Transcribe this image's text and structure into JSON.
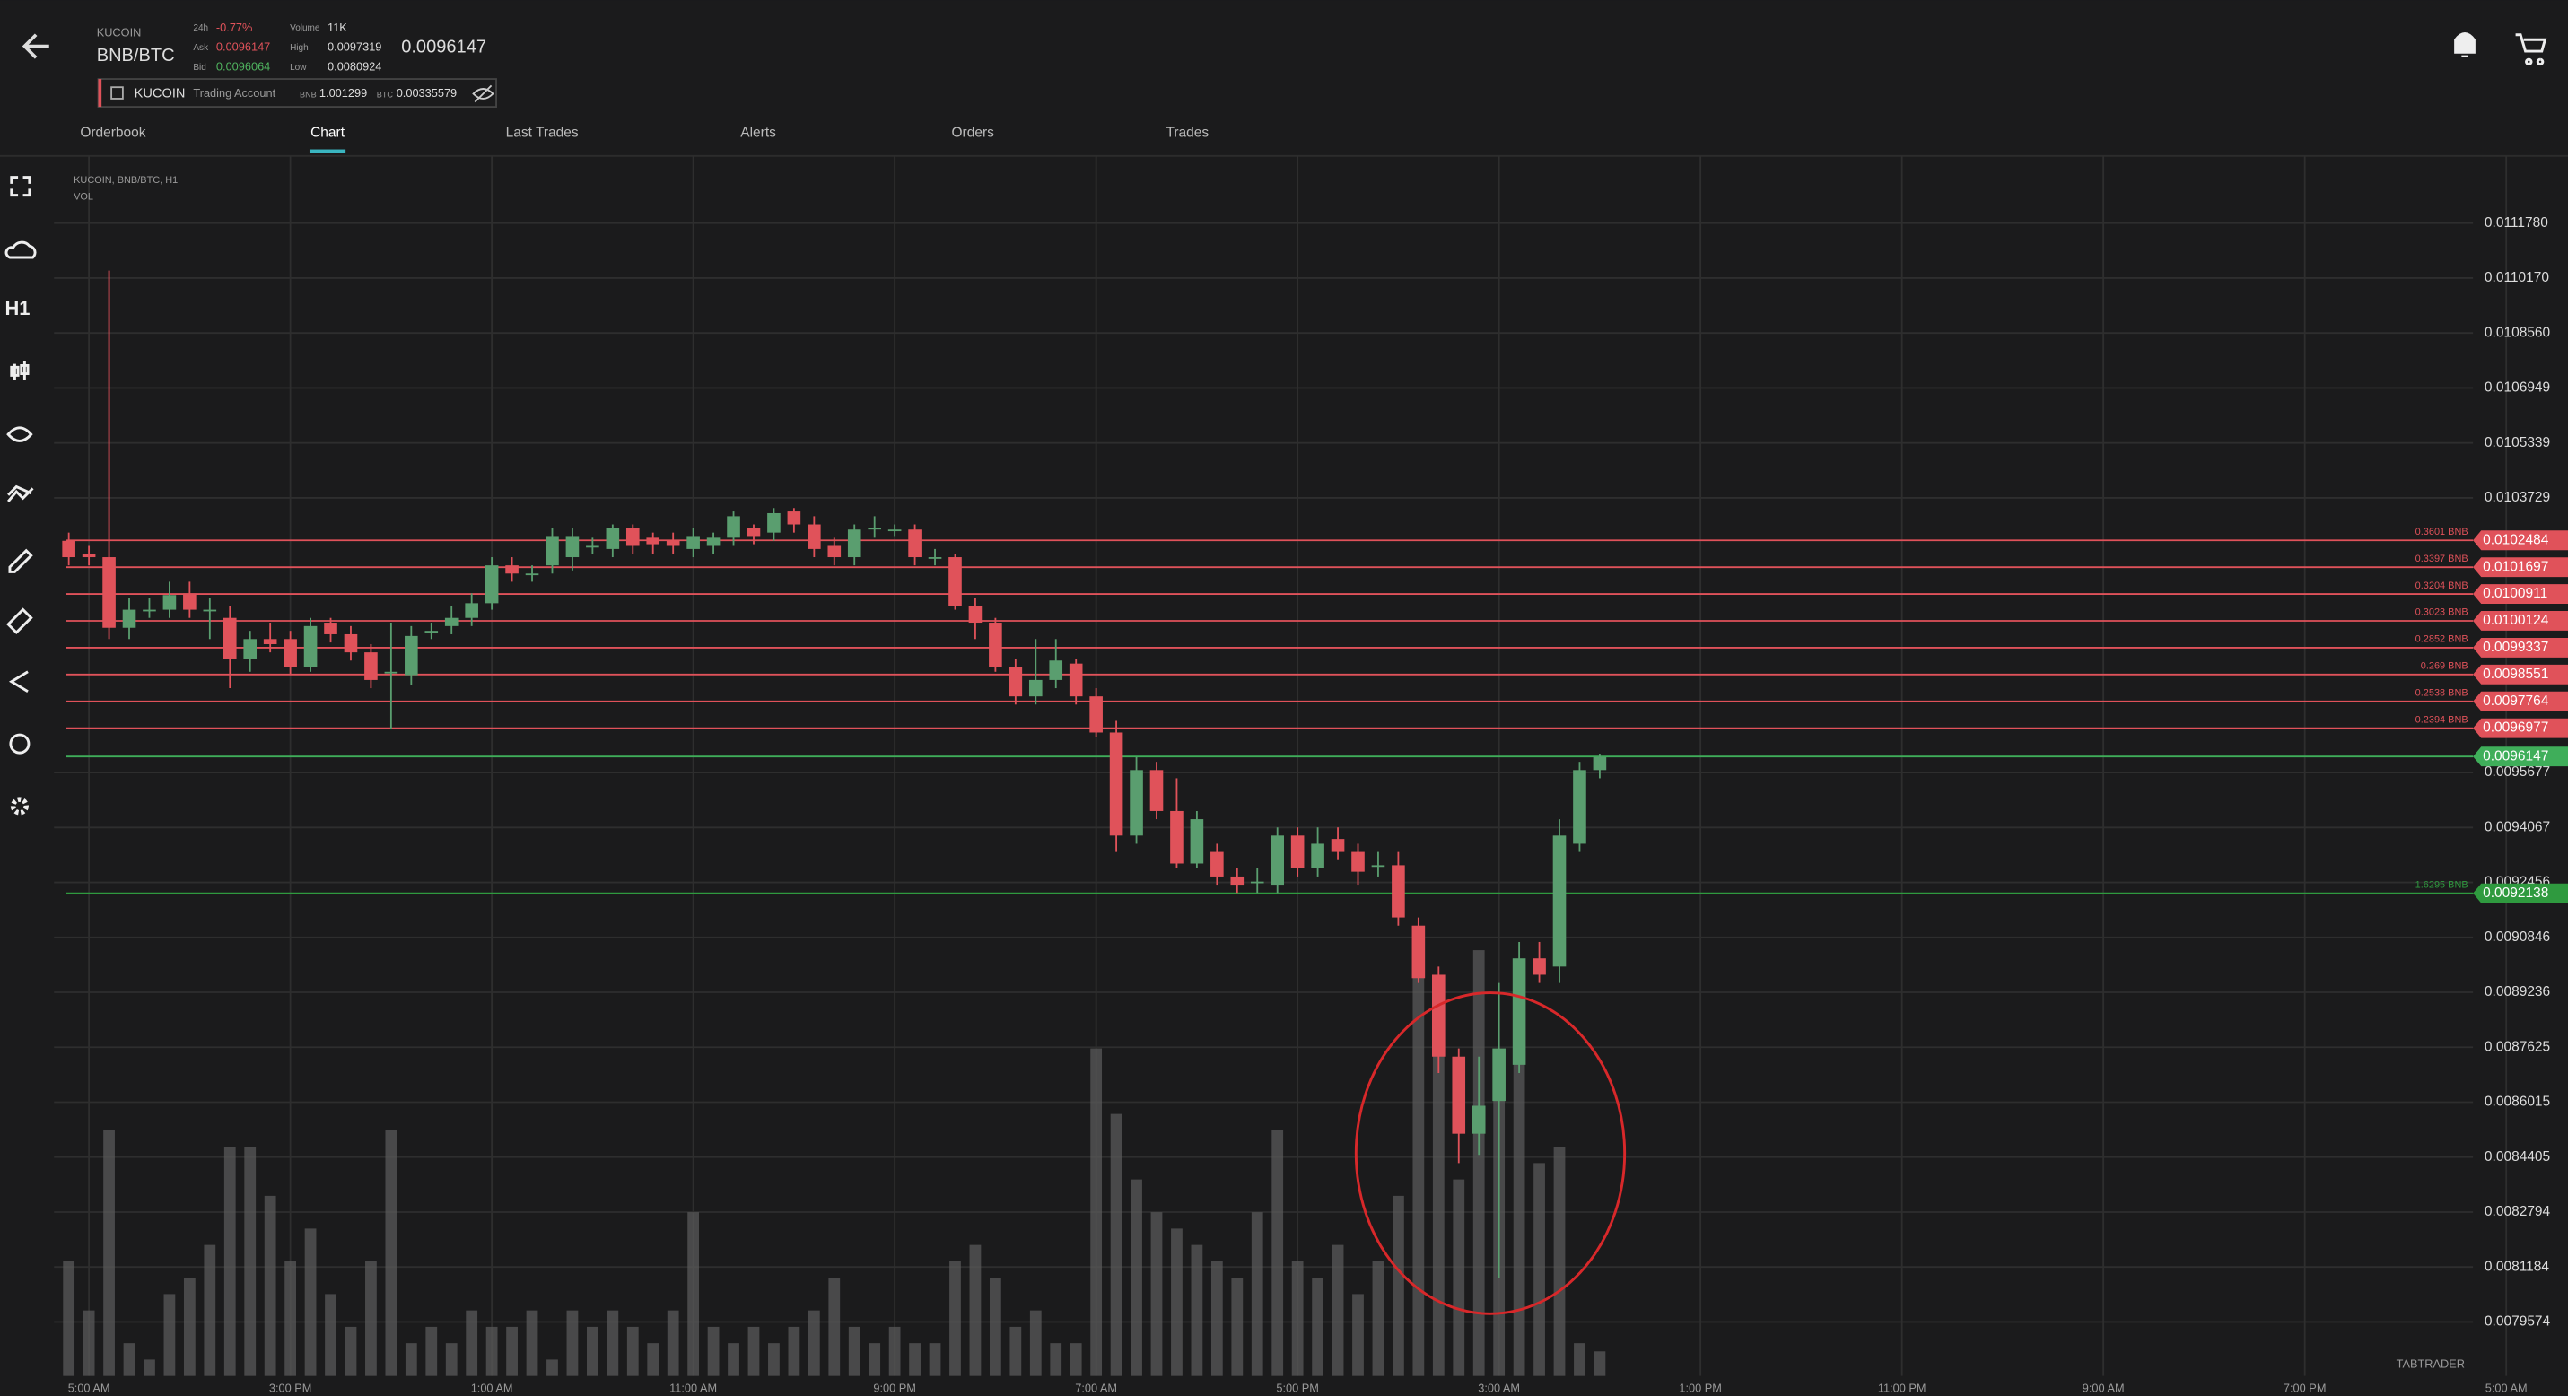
{
  "header": {
    "exchange": "KUCOIN",
    "pair": "BNB/BTC",
    "change_label": "24h",
    "change": "-0.77%",
    "ask_label": "Ask",
    "ask": "0.0096147",
    "bid_label": "Bid",
    "bid": "0.0096064",
    "volume_label": "Volume",
    "volume": "11K",
    "high_label": "High",
    "high": "0.0097319",
    "low_label": "Low",
    "low": "0.0080924",
    "last": "0.0096147"
  },
  "account": {
    "exchange": "KUCOIN",
    "name": "Trading Account",
    "bnb_label": "BNB",
    "bnb": "1.001299",
    "btc_label": "BTC",
    "btc": "0.00335579"
  },
  "tabs": [
    "Orderbook",
    "Chart",
    "Last Trades",
    "Alerts",
    "Orders",
    "Trades"
  ],
  "active_tab": "Chart",
  "sidebar": {
    "timeframe": "H1"
  },
  "watermark": "TABTRADER",
  "chart_data": {
    "type": "candlestick",
    "title": "KUCOIN, BNB/BTC, H1",
    "volume_label": "VOL",
    "up_color": "#5a9e6f",
    "down_color": "#e0525a",
    "volume_color": "#5a5a5a",
    "grid": true,
    "ylim": [
      0.007799,
      0.011375
    ],
    "yticks": [
      {
        "value": 0.011178,
        "label": "0.0111780"
      },
      {
        "value": 0.011017,
        "label": "0.0110170"
      },
      {
        "value": 0.010856,
        "label": "0.0108560"
      },
      0.0106949,
      0.0105339,
      0.0103729,
      0.0095677,
      0.0094067,
      0.0092456,
      0.0090846,
      0.0089236,
      0.0087625,
      0.0086015,
      0.0084405,
      0.0082794,
      0.0081184,
      0.0079574
    ],
    "x_labels": [
      "5:00 AM",
      "3:00 PM",
      "1:00 AM",
      "11:00 AM",
      "9:00 PM",
      "7:00 AM",
      "5:00 PM",
      "3:00 AM",
      "1:00 PM",
      "11:00 PM",
      "9:00 AM",
      "7:00 PM",
      "5:00 AM"
    ],
    "open": [
      0.010247,
      0.010208,
      0.010199,
      0.009992,
      0.010045,
      0.010045,
      0.010093,
      0.010045,
      0.010021,
      0.009901,
      0.009959,
      0.009959,
      0.009877,
      0.010007,
      0.009973,
      0.00992,
      0.009863,
      0.009853,
      0.009983,
      0.009997,
      0.010021,
      0.010064,
      0.010175,
      0.010151,
      0.010175,
      0.010199,
      0.010232,
      0.010223,
      0.010285,
      0.010256,
      0.010247,
      0.010223,
      0.010232,
      0.010256,
      0.010285,
      0.010271,
      0.010333,
      0.010295,
      0.010232,
      0.010199,
      0.010285,
      0.01028,
      0.01028,
      0.010199,
      0.010199,
      0.010055,
      0.010007,
      0.009877,
      0.009791,
      0.009839,
      0.009887,
      0.009791,
      0.009685,
      0.009383,
      0.009575,
      0.009455,
      0.009301,
      0.009335,
      0.009263,
      0.009248,
      0.009239,
      0.009383,
      0.009287,
      0.009373,
      0.009335,
      0.009296,
      0.009296,
      0.009119,
      0.008975,
      0.008735,
      0.008509,
      0.008605,
      0.008711,
      0.009023,
      0.008999,
      0.009359,
      0.009575
    ],
    "close": [
      0.010199,
      0.010199,
      0.009992,
      0.010045,
      0.010045,
      0.010088,
      0.010045,
      0.010045,
      0.009901,
      0.009959,
      0.009944,
      0.009877,
      0.009997,
      0.009973,
      0.00992,
      0.009839,
      0.009863,
      0.009968,
      0.009983,
      0.010021,
      0.010064,
      0.010175,
      0.010151,
      0.010151,
      0.010261,
      0.010261,
      0.010232,
      0.010285,
      0.010232,
      0.010237,
      0.010232,
      0.010261,
      0.010256,
      0.010319,
      0.010261,
      0.010328,
      0.010295,
      0.010223,
      0.010199,
      0.01028,
      0.010285,
      0.01028,
      0.010199,
      0.010199,
      0.010055,
      0.010007,
      0.009877,
      0.009791,
      0.009839,
      0.009896,
      0.009791,
      0.009685,
      0.009383,
      0.009575,
      0.009455,
      0.009301,
      0.009431,
      0.009263,
      0.009239,
      0.009248,
      0.009383,
      0.009287,
      0.009359,
      0.009335,
      0.009277,
      0.009296,
      0.009143,
      0.008965,
      0.008735,
      0.008509,
      0.008591,
      0.008759,
      0.009023,
      0.008975,
      0.009383,
      0.009575,
      0.009613
    ],
    "high": [
      0.010271,
      0.010232,
      0.011039,
      0.010079,
      0.010079,
      0.010127,
      0.010127,
      0.010079,
      0.010055,
      0.009983,
      0.010007,
      0.009983,
      0.010021,
      0.010021,
      0.009997,
      0.009944,
      0.010007,
      0.009997,
      0.010007,
      0.010055,
      0.010093,
      0.010199,
      0.010199,
      0.010175,
      0.010285,
      0.010285,
      0.010256,
      0.010295,
      0.010295,
      0.010271,
      0.010271,
      0.010285,
      0.010271,
      0.010333,
      0.010295,
      0.010343,
      0.010343,
      0.010319,
      0.010256,
      0.010295,
      0.010319,
      0.010295,
      0.010295,
      0.010223,
      0.010208,
      0.010079,
      0.010021,
      0.009901,
      0.009959,
      0.009959,
      0.009901,
      0.009815,
      0.009719,
      0.009613,
      0.009599,
      0.009551,
      0.009455,
      0.009359,
      0.009287,
      0.009287,
      0.009407,
      0.009407,
      0.009407,
      0.009407,
      0.009359,
      0.009335,
      0.009335,
      0.009143,
      0.008999,
      0.008759,
      0.008735,
      0.008951,
      0.009071,
      0.009071,
      0.009431,
      0.009599,
      0.009623
    ],
    "low": [
      0.010175,
      0.010175,
      0.009959,
      0.009959,
      0.010021,
      0.010021,
      0.010021,
      0.009959,
      0.009815,
      0.009863,
      0.00992,
      0.009853,
      0.009863,
      0.009949,
      0.009896,
      0.009815,
      0.009695,
      0.009824,
      0.009959,
      0.009973,
      0.009997,
      0.010045,
      0.010127,
      0.010127,
      0.010151,
      0.01016,
      0.010208,
      0.010199,
      0.010208,
      0.010208,
      0.010208,
      0.010199,
      0.010208,
      0.010232,
      0.010237,
      0.010247,
      0.010271,
      0.010199,
      0.010175,
      0.010175,
      0.010256,
      0.010261,
      0.010175,
      0.010175,
      0.010045,
      0.009959,
      0.009863,
      0.009767,
      0.009767,
      0.009815,
      0.009767,
      0.009671,
      0.009335,
      0.009359,
      0.009431,
      0.009287,
      0.009287,
      0.009239,
      0.009215,
      0.009215,
      0.009215,
      0.009263,
      0.009263,
      0.009311,
      0.009239,
      0.009263,
      0.009119,
      0.008951,
      0.008687,
      0.008423,
      0.008447,
      0.008087,
      0.008687,
      0.008951,
      0.008951,
      0.009335,
      0.009551
    ],
    "volume": [
      70,
      40,
      150,
      20,
      10,
      50,
      60,
      80,
      140,
      140,
      110,
      70,
      90,
      50,
      30,
      70,
      150,
      20,
      30,
      20,
      40,
      30,
      30,
      40,
      10,
      40,
      30,
      40,
      30,
      20,
      40,
      100,
      30,
      20,
      30,
      20,
      30,
      40,
      60,
      30,
      20,
      30,
      20,
      20,
      70,
      80,
      60,
      30,
      40,
      20,
      20,
      200,
      160,
      120,
      100,
      90,
      80,
      70,
      60,
      100,
      150,
      70,
      60,
      80,
      50,
      70,
      110,
      270,
      210,
      120,
      260,
      170,
      210,
      130,
      140,
      20,
      15
    ],
    "order_lines": [
      {
        "price": 0.0102484,
        "amount": "0.3601 BNB",
        "color": "#e0525a"
      },
      {
        "price": 0.0101697,
        "amount": "0.3397 BNB",
        "color": "#e0525a"
      },
      {
        "price": 0.0100911,
        "amount": "0.3204 BNB",
        "color": "#e0525a"
      },
      {
        "price": 0.0100124,
        "amount": "0.3023 BNB",
        "color": "#e0525a"
      },
      {
        "price": 0.0099337,
        "amount": "0.2852 BNB",
        "color": "#e0525a"
      },
      {
        "price": 0.0098551,
        "amount": "0.269 BNB",
        "color": "#e0525a"
      },
      {
        "price": 0.0097764,
        "amount": "0.2538 BNB",
        "color": "#e0525a"
      },
      {
        "price": 0.0096977,
        "amount": "0.2394 BNB",
        "color": "#e0525a"
      },
      {
        "price": 0.0092138,
        "amount": "1.6295 BNB",
        "color": "#2f9a3f"
      }
    ],
    "current_price": {
      "price": 0.0096147,
      "color": "#3fae5a"
    }
  }
}
